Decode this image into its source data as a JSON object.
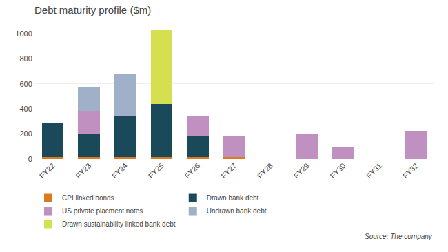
{
  "chart_data": {
    "type": "bar",
    "title": "Debt maturity profile ($m)",
    "categories": [
      "FY22",
      "FY23",
      "FY24",
      "FY25",
      "FY26",
      "FY27",
      "FY28",
      "FY29",
      "FY30",
      "FY31",
      "FY32"
    ],
    "series": [
      {
        "name": "CPI linked bonds",
        "color": "#E07820",
        "values": [
          15,
          15,
          15,
          15,
          15,
          15,
          0,
          0,
          0,
          0,
          0
        ]
      },
      {
        "name": "Drawn bank debt",
        "color": "#1A4A5A",
        "values": [
          275,
          185,
          330,
          425,
          165,
          0,
          0,
          0,
          0,
          0,
          0
        ]
      },
      {
        "name": "US private placment notes",
        "color": "#C090C0",
        "values": [
          0,
          185,
          0,
          0,
          165,
          165,
          0,
          200,
          100,
          0,
          225
        ]
      },
      {
        "name": "Undrawn bank debt",
        "color": "#A0B0C8",
        "values": [
          0,
          195,
          330,
          0,
          0,
          0,
          0,
          0,
          0,
          0,
          0
        ]
      },
      {
        "name": "Drawn sustainability linked bank debt",
        "color": "#D4E050",
        "values": [
          0,
          0,
          0,
          590,
          0,
          0,
          0,
          0,
          0,
          0,
          0
        ]
      }
    ],
    "stacked": true,
    "ylim": [
      0,
      1050
    ],
    "yticks": [
      0,
      200,
      400,
      600,
      800,
      1000
    ],
    "grid": true,
    "legend": "bottom",
    "annotations": [
      "Source: The company"
    ]
  }
}
